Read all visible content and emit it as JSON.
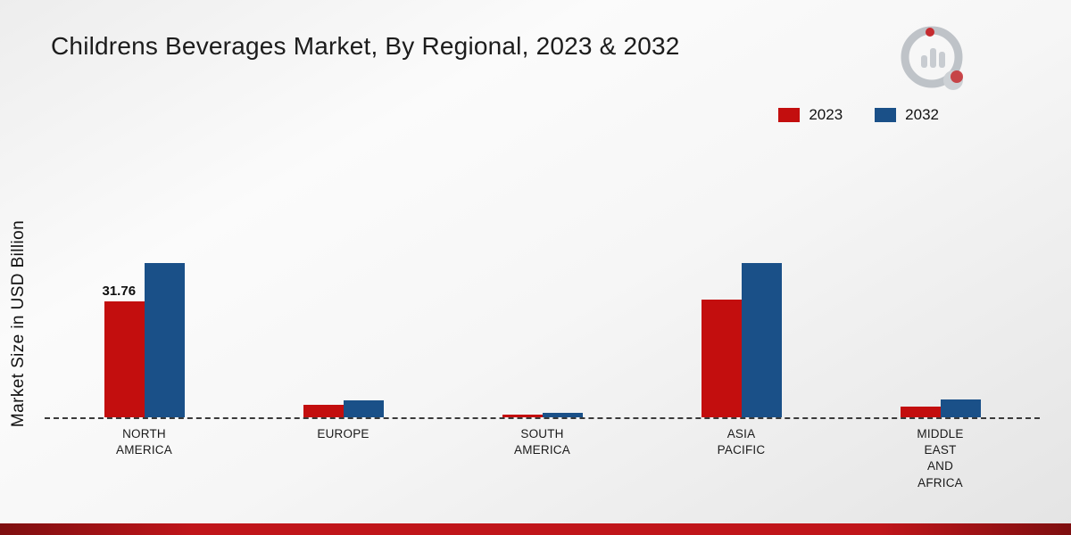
{
  "page": {
    "title": "Childrens Beverages Market, By Regional, 2023 & 2032",
    "y_axis_label": "Market Size in USD Billion"
  },
  "legend": [
    {
      "label": "2023",
      "color": "#c30e0e"
    },
    {
      "label": "2032",
      "color": "#1a5088"
    }
  ],
  "chart_data": {
    "type": "bar",
    "title": "Childrens Beverages Market, By Regional, 2023 & 2032",
    "xlabel": "",
    "ylabel": "Market Size in USD Billion",
    "categories": [
      "NORTH AMERICA",
      "EUROPE",
      "SOUTH AMERICA",
      "ASIA PACIFIC",
      "MIDDLE EAST AND AFRICA"
    ],
    "categories_display": [
      "NORTH\nAMERICA",
      "EUROPE",
      "SOUTH\nAMERICA",
      "ASIA\nPACIFIC",
      "MIDDLE\nEAST\nAND\nAFRICA"
    ],
    "series": [
      {
        "name": "2023",
        "color": "#c30e0e",
        "values": [
          31.76,
          3.5,
          0.8,
          32.2,
          2.9
        ]
      },
      {
        "name": "2032",
        "color": "#1a5088",
        "values": [
          42.3,
          4.6,
          1.3,
          42.2,
          4.9
        ]
      }
    ],
    "data_labels": [
      {
        "series": "2023",
        "category": "NORTH AMERICA",
        "text": "31.76"
      }
    ],
    "ylim": [
      0,
      44
    ],
    "grid": false,
    "baseline_style": "dashed",
    "legend_position": "top-right"
  }
}
